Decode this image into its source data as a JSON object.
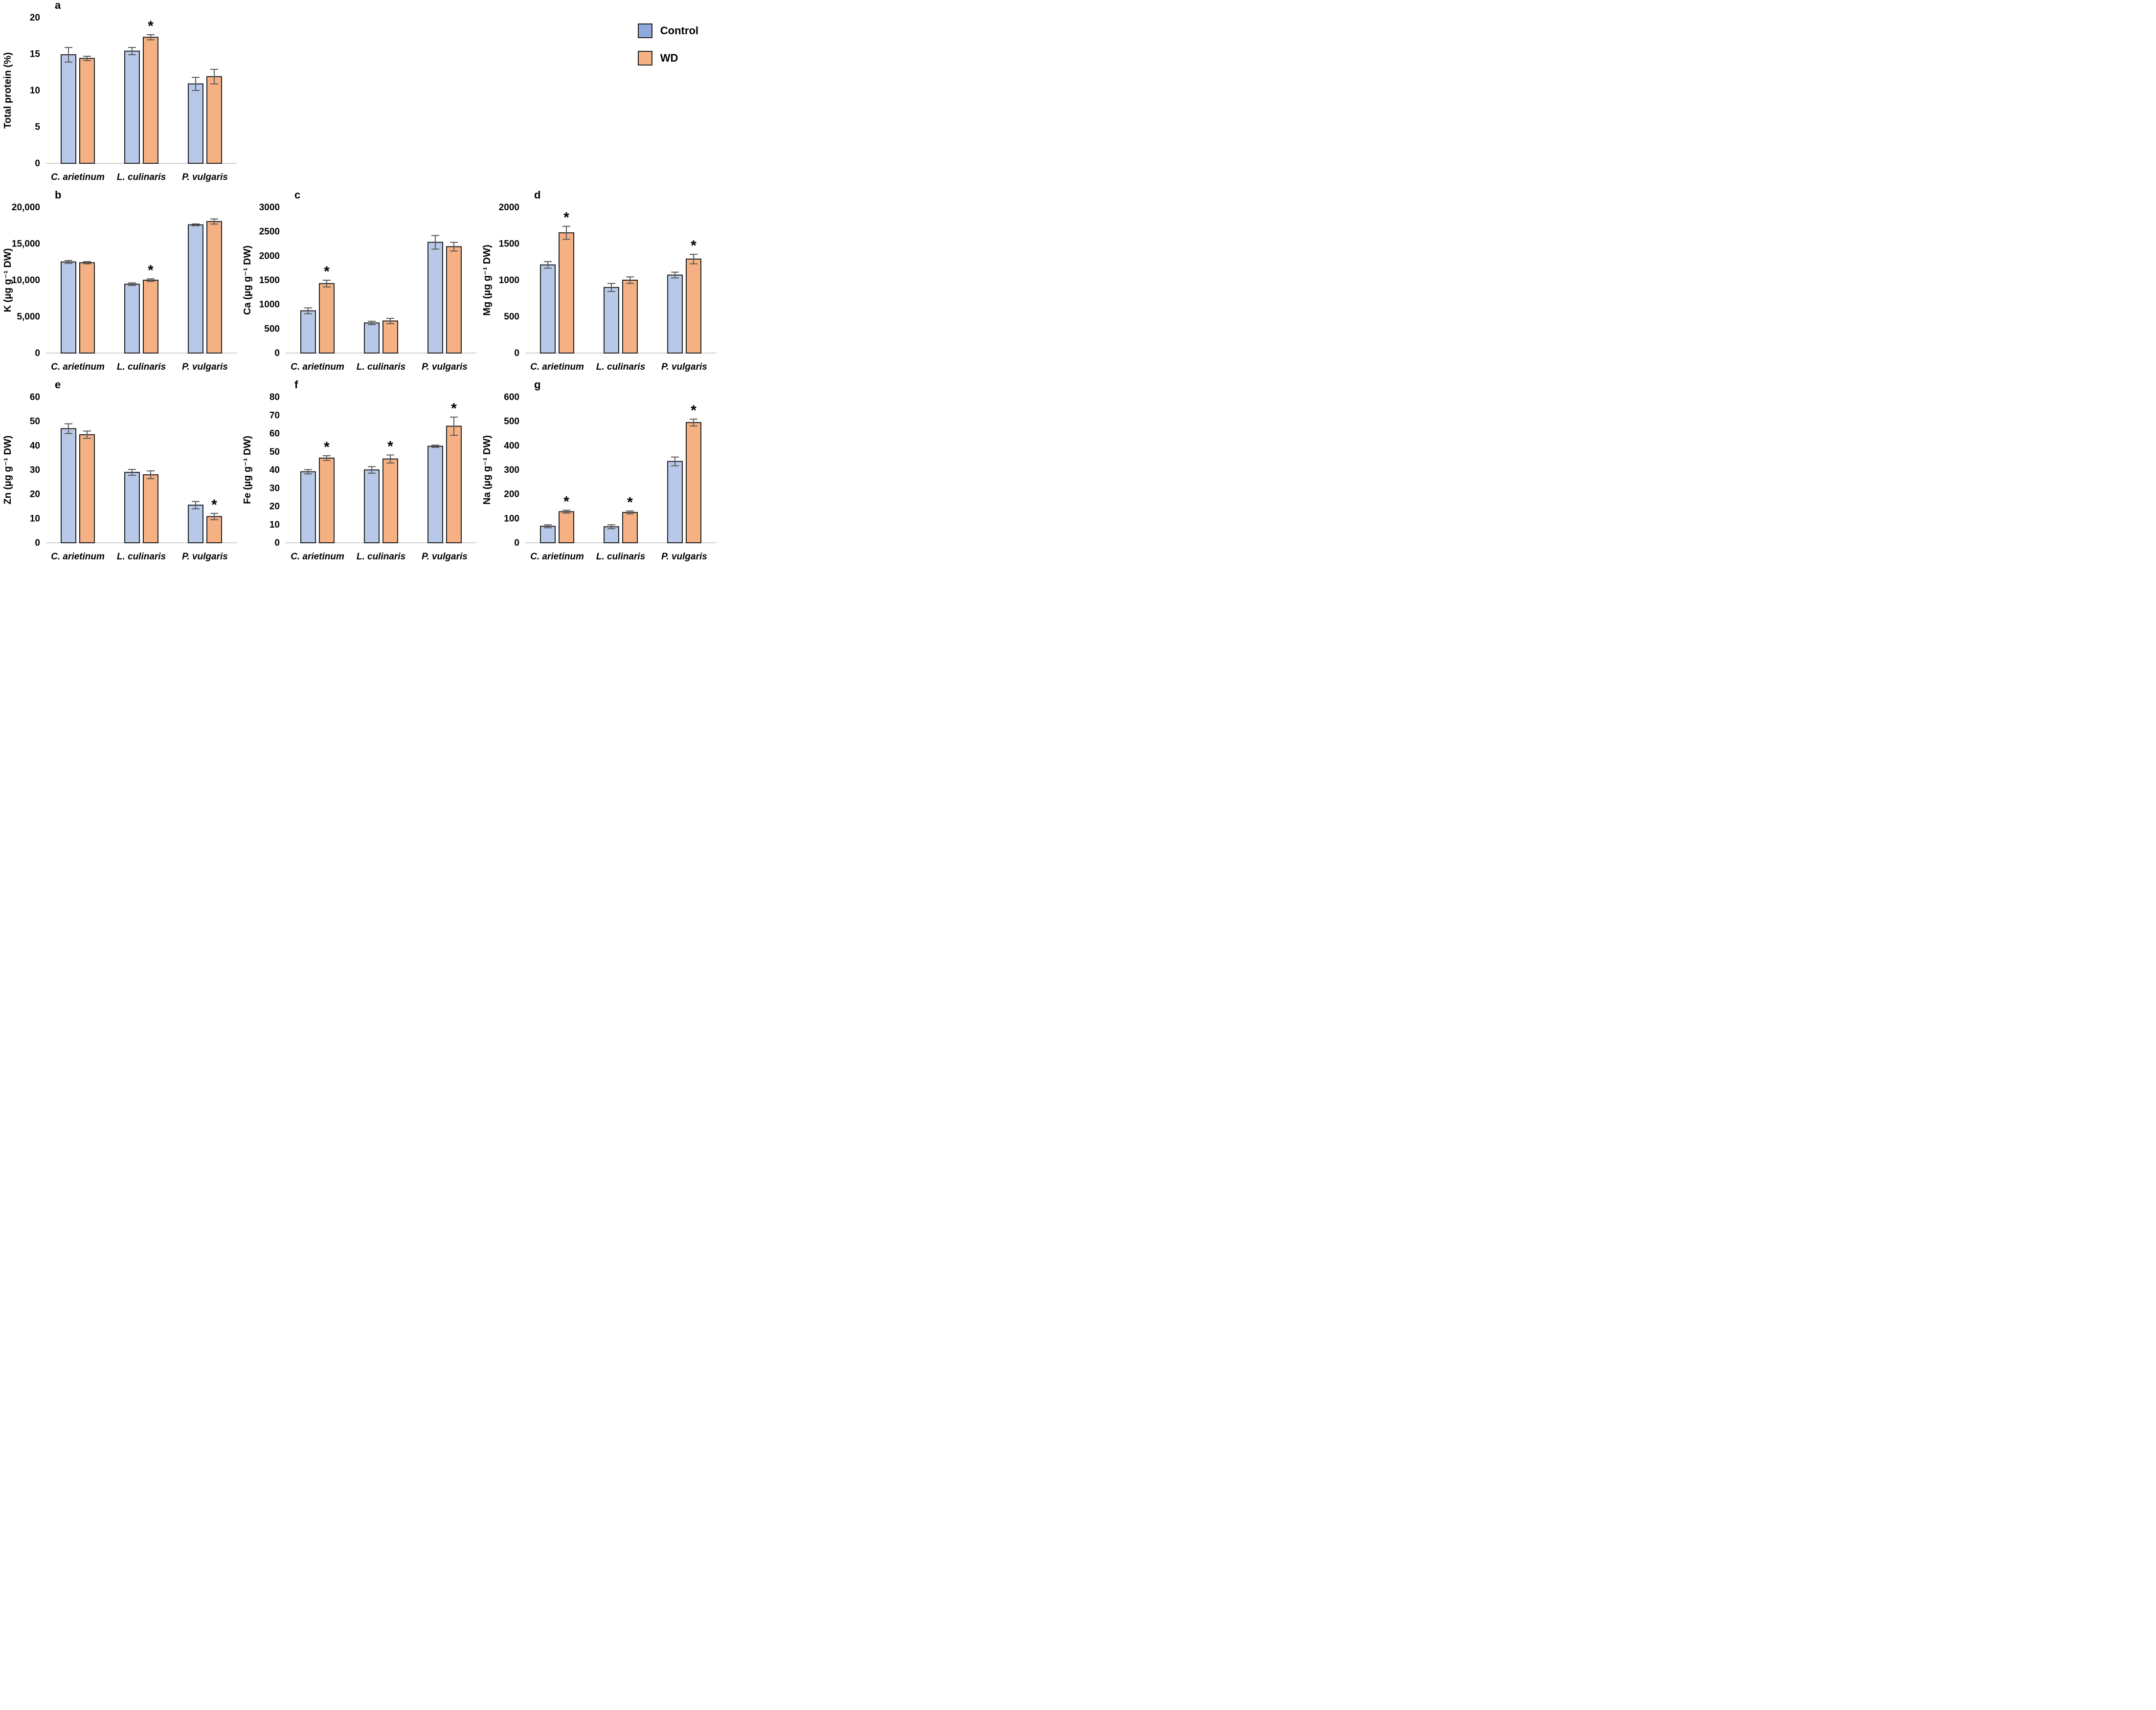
{
  "legend": {
    "items": [
      {
        "label": "Control"
      },
      {
        "label": "WD"
      }
    ],
    "position": "top-right"
  },
  "colors": {
    "control_fill": "#B7C8E9",
    "wd_fill": "#F5B183",
    "legend_control_fill": "#8FAADC",
    "legend_wd_fill": "#F4B183",
    "bar_border": "#222222",
    "error_bar": "#5A5A5A",
    "baseline": "#D0D0D0",
    "text": "#000000"
  },
  "chart_data": [
    {
      "id": "a",
      "type": "bar",
      "panel_label": "a",
      "ylabel": "Total protein (%)",
      "xlabel": "",
      "ylim": [
        0,
        20
      ],
      "grid": false,
      "ytick_values": [
        0,
        5,
        10,
        15,
        20
      ],
      "ytick_labels": [
        "0",
        "5",
        "10",
        "15",
        "20"
      ],
      "categories": [
        "C. arietinum",
        "L. culinaris",
        "P. vulgaris"
      ],
      "series": [
        {
          "name": "Control",
          "values": [
            14.9,
            15.4,
            10.9
          ],
          "errors": [
            1.0,
            0.5,
            0.9
          ]
        },
        {
          "name": "WD",
          "values": [
            14.4,
            17.3,
            11.9
          ],
          "errors": [
            0.3,
            0.35,
            1.0
          ]
        }
      ],
      "sig_wd": [
        false,
        true,
        false
      ]
    },
    {
      "id": "b",
      "type": "bar",
      "panel_label": "b",
      "ylabel": "K (µg g⁻¹ DW)",
      "xlabel": "",
      "ylim": [
        0,
        20000
      ],
      "grid": false,
      "ytick_values": [
        0,
        5000,
        10000,
        15000,
        20000
      ],
      "ytick_labels": [
        "0",
        "5,000",
        "10,000",
        "15,000",
        "20,000"
      ],
      "categories": [
        "C. arietinum",
        "L. culinaris",
        "P. vulgaris"
      ],
      "series": [
        {
          "name": "Control",
          "values": [
            12500,
            9450,
            17600
          ],
          "errors": [
            200,
            180,
            120
          ]
        },
        {
          "name": "WD",
          "values": [
            12400,
            10000,
            18050
          ],
          "errors": [
            150,
            180,
            350
          ]
        }
      ],
      "sig_wd": [
        false,
        true,
        false
      ]
    },
    {
      "id": "c",
      "type": "bar",
      "panel_label": "c",
      "ylabel": "Ca (µg g⁻¹ DW)",
      "xlabel": "",
      "ylim": [
        0,
        3000
      ],
      "grid": false,
      "ytick_values": [
        0,
        500,
        1000,
        1500,
        2000,
        2500,
        3000
      ],
      "ytick_labels": [
        "0",
        "500",
        "1000",
        "1500",
        "2000",
        "2500",
        "3000"
      ],
      "categories": [
        "C. arietinum",
        "L. culinaris",
        "P. vulgaris"
      ],
      "series": [
        {
          "name": "Control",
          "values": [
            870,
            620,
            2280
          ],
          "errors": [
            60,
            35,
            140
          ]
        },
        {
          "name": "WD",
          "values": [
            1430,
            660,
            2190
          ],
          "errors": [
            70,
            55,
            90
          ]
        }
      ],
      "sig_wd": [
        true,
        false,
        false
      ]
    },
    {
      "id": "d",
      "type": "bar",
      "panel_label": "d",
      "ylabel": "Mg (µg g⁻¹ DW)",
      "xlabel": "",
      "ylim": [
        0,
        2000
      ],
      "grid": false,
      "ytick_values": [
        0,
        500,
        1000,
        1500,
        2000
      ],
      "ytick_labels": [
        "0",
        "500",
        "1000",
        "1500",
        "2000"
      ],
      "categories": [
        "C. arietinum",
        "L. culinaris",
        "P. vulgaris"
      ],
      "series": [
        {
          "name": "Control",
          "values": [
            1210,
            900,
            1070
          ],
          "errors": [
            45,
            55,
            40
          ]
        },
        {
          "name": "WD",
          "values": [
            1650,
            1000,
            1290
          ],
          "errors": [
            90,
            45,
            65
          ]
        }
      ],
      "sig_wd": [
        true,
        false,
        true
      ]
    },
    {
      "id": "e",
      "type": "bar",
      "panel_label": "e",
      "ylabel": "Zn (µg g⁻¹ DW)",
      "xlabel": "",
      "ylim": [
        0,
        60
      ],
      "grid": false,
      "ytick_values": [
        0,
        10,
        20,
        30,
        40,
        50,
        60
      ],
      "ytick_labels": [
        "0",
        "10",
        "20",
        "30",
        "40",
        "50",
        "60"
      ],
      "categories": [
        "C. arietinum",
        "L. culinaris",
        "P. vulgaris"
      ],
      "series": [
        {
          "name": "Control",
          "values": [
            47,
            29,
            15.5
          ],
          "errors": [
            2.0,
            1.2,
            1.5
          ]
        },
        {
          "name": "WD",
          "values": [
            44.5,
            28,
            10.8
          ],
          "errors": [
            1.5,
            1.6,
            1.3
          ]
        }
      ],
      "sig_wd": [
        false,
        false,
        true
      ]
    },
    {
      "id": "f",
      "type": "bar",
      "panel_label": "f",
      "ylabel": "Fe (µg g⁻¹ DW)",
      "xlabel": "",
      "ylim": [
        0,
        80
      ],
      "grid": false,
      "ytick_values": [
        0,
        10,
        20,
        30,
        40,
        50,
        60,
        70,
        80
      ],
      "ytick_labels": [
        "0",
        "10",
        "20",
        "30",
        "40",
        "50",
        "60",
        "70",
        "80"
      ],
      "categories": [
        "C. arietinum",
        "L. culinaris",
        "P. vulgaris"
      ],
      "series": [
        {
          "name": "Control",
          "values": [
            39,
            40,
            53
          ],
          "errors": [
            1.2,
            1.8,
            0.6
          ]
        },
        {
          "name": "WD",
          "values": [
            46.5,
            46,
            64
          ],
          "errors": [
            1.3,
            2.2,
            5.0
          ]
        }
      ],
      "sig_wd": [
        true,
        true,
        true
      ]
    },
    {
      "id": "g",
      "type": "bar",
      "panel_label": "g",
      "ylabel": "Na (µg g⁻¹ DW)",
      "xlabel": "",
      "ylim": [
        0,
        600
      ],
      "grid": false,
      "ytick_values": [
        0,
        100,
        200,
        300,
        400,
        500,
        600
      ],
      "ytick_labels": [
        "0",
        "100",
        "200",
        "300",
        "400",
        "500",
        "600"
      ],
      "categories": [
        "C. arietinum",
        "L. culinaris",
        "P. vulgaris"
      ],
      "series": [
        {
          "name": "Control",
          "values": [
            68,
            66,
            335
          ],
          "errors": [
            6,
            8,
            18
          ]
        },
        {
          "name": "WD",
          "values": [
            128,
            125,
            495
          ],
          "errors": [
            6,
            6,
            14
          ]
        }
      ],
      "sig_wd": [
        true,
        true,
        true
      ]
    }
  ]
}
